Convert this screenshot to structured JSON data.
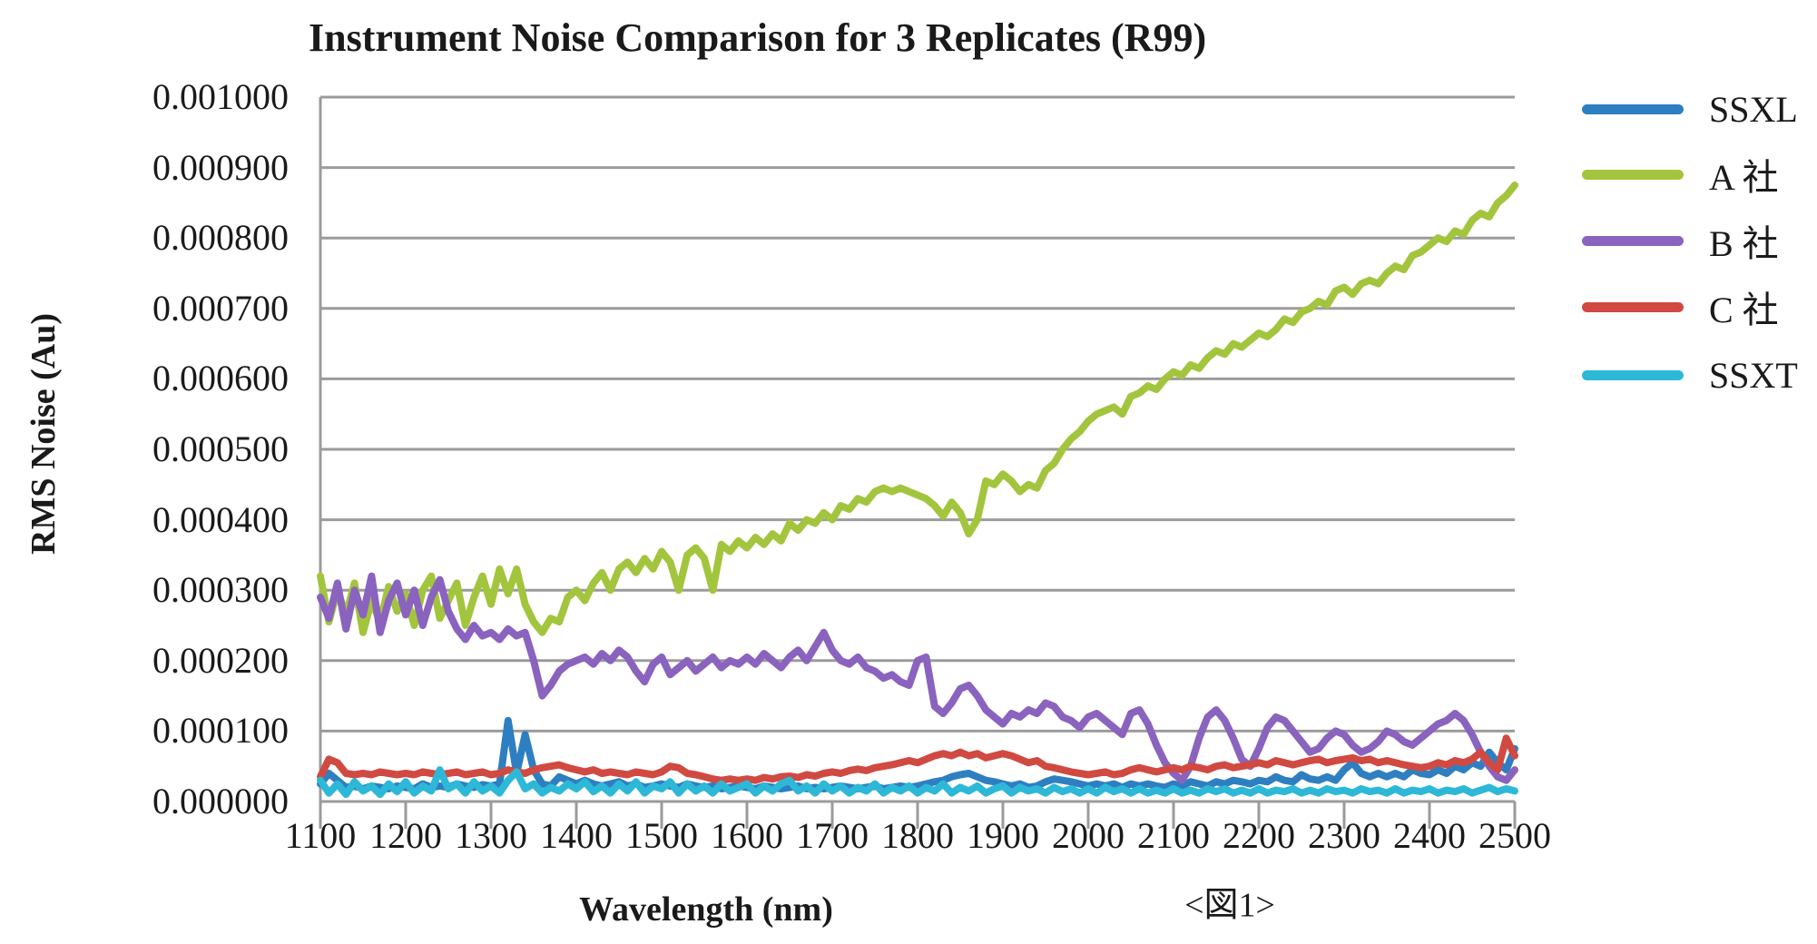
{
  "title": "Instrument Noise Comparison for 3 Replicates (R99)",
  "caption": "<図1>",
  "axes": {
    "x": {
      "label": "Wavelength (nm)",
      "min": 1100,
      "max": 2500,
      "tick_step": 100,
      "ticks": [
        "1100",
        "1200",
        "1300",
        "1400",
        "1500",
        "1600",
        "1700",
        "1800",
        "1900",
        "2000",
        "2100",
        "2200",
        "2300",
        "2400",
        "2500"
      ]
    },
    "y": {
      "label": "RMS Noise (Au)",
      "min": 0,
      "max": 0.001,
      "tick_step": 0.0001,
      "tick_labels": [
        "0.000000",
        "0.000100",
        "0.000200",
        "0.000300",
        "0.000400",
        "0.000500",
        "0.000600",
        "0.000700",
        "0.000800",
        "0.000900",
        "0.001000"
      ]
    }
  },
  "legend": [
    {
      "label": "SSXL",
      "color": "#2E7FC1"
    },
    {
      "label": "A 社",
      "color": "#A3C53E"
    },
    {
      "label": "B 社",
      "color": "#8A63BE"
    },
    {
      "label": "C 社",
      "color": "#D04A42"
    },
    {
      "label": "SSXT",
      "color": "#2EB8D8"
    }
  ],
  "styles": {
    "grid_color": "#9B9B9B",
    "axis_color": "#9B9B9B",
    "text_color": "#1A1A1A",
    "background": "#FFFFFF",
    "series_stroke_width": 8
  },
  "chart_data": {
    "type": "line",
    "title": "Instrument Noise Comparison for 3 Replicates (R99)",
    "xlabel": "Wavelength (nm)",
    "ylabel": "RMS Noise (Au)",
    "xlim": [
      1100,
      2500
    ],
    "ylim": [
      0,
      0.001
    ],
    "grid": "horizontal",
    "legend_position": "right",
    "x_start": 1100,
    "x_step": 10,
    "x_unit": "nm",
    "value_scale": 1e-06,
    "series": [
      {
        "name": "SSXL",
        "color": "#2E7FC1",
        "values": [
          25,
          40,
          30,
          20,
          22,
          18,
          22,
          20,
          18,
          22,
          20,
          18,
          25,
          20,
          22,
          20,
          25,
          22,
          20,
          24,
          22,
          25,
          115,
          40,
          95,
          45,
          25,
          22,
          35,
          30,
          25,
          30,
          25,
          22,
          25,
          28,
          22,
          25,
          20,
          22,
          25,
          22,
          20,
          25,
          22,
          20,
          22,
          18,
          20,
          22,
          20,
          18,
          22,
          20,
          18,
          20,
          22,
          18,
          20,
          18,
          20,
          22,
          20,
          18,
          20,
          22,
          18,
          20,
          22,
          20,
          22,
          25,
          28,
          30,
          35,
          38,
          40,
          35,
          30,
          28,
          25,
          22,
          25,
          20,
          22,
          28,
          32,
          30,
          28,
          25,
          22,
          25,
          22,
          25,
          20,
          25,
          22,
          25,
          22,
          20,
          25,
          22,
          28,
          25,
          22,
          28,
          25,
          30,
          28,
          25,
          30,
          28,
          35,
          30,
          28,
          38,
          32,
          30,
          35,
          30,
          45,
          55,
          40,
          35,
          40,
          35,
          40,
          35,
          45,
          40,
          38,
          45,
          40,
          50,
          45,
          55,
          50,
          70,
          55,
          45,
          75
        ]
      },
      {
        "name": "A 社",
        "color": "#A3C53E",
        "values": [
          320,
          255,
          300,
          265,
          310,
          240,
          285,
          255,
          305,
          270,
          295,
          250,
          300,
          320,
          260,
          285,
          310,
          250,
          290,
          320,
          280,
          330,
          295,
          330,
          280,
          255,
          240,
          260,
          255,
          290,
          300,
          285,
          310,
          325,
          300,
          330,
          340,
          325,
          345,
          330,
          355,
          340,
          300,
          350,
          360,
          345,
          300,
          365,
          355,
          370,
          360,
          375,
          365,
          380,
          370,
          395,
          385,
          400,
          395,
          410,
          400,
          420,
          415,
          430,
          425,
          440,
          445,
          440,
          445,
          440,
          435,
          430,
          420,
          405,
          425,
          410,
          380,
          400,
          455,
          450,
          465,
          455,
          440,
          450,
          445,
          470,
          480,
          500,
          515,
          525,
          540,
          550,
          555,
          560,
          550,
          575,
          580,
          590,
          585,
          600,
          610,
          605,
          620,
          615,
          630,
          640,
          635,
          650,
          645,
          655,
          665,
          660,
          670,
          685,
          680,
          695,
          700,
          710,
          705,
          725,
          730,
          720,
          735,
          740,
          735,
          750,
          760,
          755,
          775,
          780,
          790,
          800,
          795,
          810,
          805,
          825,
          835,
          830,
          850,
          860,
          875
        ]
      },
      {
        "name": "B 社",
        "color": "#8A63BE",
        "values": [
          290,
          260,
          310,
          245,
          300,
          265,
          320,
          240,
          285,
          310,
          265,
          300,
          250,
          290,
          315,
          270,
          245,
          230,
          250,
          235,
          240,
          230,
          245,
          235,
          240,
          200,
          150,
          165,
          185,
          195,
          200,
          205,
          195,
          210,
          200,
          215,
          205,
          185,
          170,
          195,
          205,
          180,
          190,
          200,
          185,
          195,
          205,
          190,
          200,
          195,
          205,
          195,
          210,
          200,
          190,
          205,
          215,
          200,
          220,
          240,
          215,
          200,
          195,
          205,
          190,
          185,
          175,
          180,
          170,
          165,
          200,
          205,
          135,
          125,
          140,
          160,
          165,
          150,
          130,
          120,
          110,
          125,
          120,
          130,
          125,
          140,
          135,
          120,
          115,
          105,
          120,
          125,
          115,
          105,
          95,
          125,
          130,
          110,
          80,
          55,
          40,
          30,
          50,
          90,
          120,
          130,
          115,
          90,
          60,
          50,
          75,
          105,
          120,
          115,
          100,
          85,
          70,
          75,
          90,
          100,
          95,
          80,
          70,
          75,
          85,
          100,
          95,
          85,
          80,
          90,
          100,
          110,
          115,
          125,
          115,
          95,
          70,
          50,
          35,
          30,
          45
        ]
      },
      {
        "name": "C 社",
        "color": "#D04A42",
        "values": [
          35,
          60,
          55,
          40,
          38,
          40,
          38,
          42,
          40,
          38,
          40,
          38,
          42,
          40,
          38,
          40,
          42,
          38,
          40,
          42,
          38,
          40,
          45,
          42,
          40,
          45,
          48,
          50,
          52,
          48,
          45,
          42,
          45,
          40,
          42,
          40,
          38,
          42,
          40,
          38,
          42,
          50,
          48,
          40,
          38,
          35,
          32,
          30,
          32,
          30,
          32,
          30,
          34,
          32,
          35,
          36,
          34,
          38,
          36,
          40,
          42,
          40,
          44,
          46,
          44,
          48,
          50,
          52,
          55,
          58,
          55,
          60,
          65,
          68,
          65,
          70,
          65,
          68,
          62,
          65,
          68,
          65,
          60,
          55,
          58,
          50,
          48,
          45,
          42,
          40,
          38,
          40,
          42,
          38,
          40,
          45,
          48,
          45,
          42,
          45,
          48,
          45,
          50,
          48,
          45,
          50,
          52,
          48,
          50,
          52,
          55,
          52,
          58,
          55,
          52,
          55,
          58,
          60,
          55,
          58,
          60,
          62,
          58,
          60,
          55,
          58,
          55,
          52,
          50,
          48,
          50,
          55,
          52,
          58,
          55,
          60,
          70,
          55,
          45,
          90,
          65
        ]
      },
      {
        "name": "SSXT",
        "color": "#2EB8D8",
        "values": [
          30,
          12,
          25,
          10,
          28,
          15,
          22,
          10,
          25,
          14,
          28,
          12,
          22,
          15,
          45,
          18,
          25,
          12,
          28,
          15,
          22,
          12,
          30,
          42,
          18,
          25,
          12,
          20,
          15,
          25,
          18,
          28,
          14,
          22,
          12,
          25,
          15,
          28,
          12,
          22,
          18,
          28,
          12,
          25,
          15,
          22,
          12,
          25,
          15,
          20,
          25,
          12,
          22,
          15,
          25,
          30,
          15,
          22,
          12,
          25,
          15,
          22,
          12,
          20,
          15,
          25,
          12,
          20,
          15,
          22,
          12,
          20,
          15,
          25,
          12,
          20,
          15,
          22,
          12,
          18,
          22,
          12,
          20,
          15,
          18,
          12,
          20,
          14,
          18,
          12,
          18,
          12,
          20,
          14,
          18,
          12,
          18,
          12,
          16,
          12,
          18,
          12,
          16,
          12,
          18,
          14,
          18,
          12,
          16,
          12,
          18,
          12,
          16,
          14,
          18,
          12,
          16,
          12,
          18,
          14,
          16,
          12,
          18,
          14,
          16,
          12,
          18,
          12,
          16,
          14,
          18,
          12,
          16,
          14,
          18,
          12,
          16,
          20,
          14,
          18,
          15
        ]
      }
    ]
  }
}
